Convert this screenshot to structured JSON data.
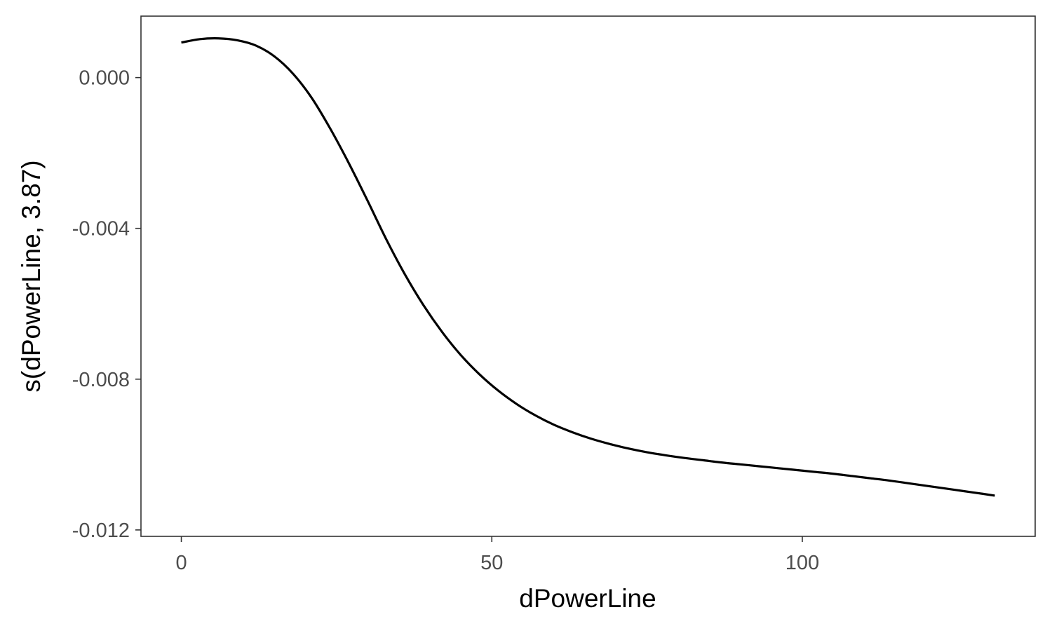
{
  "chart_data": {
    "type": "line",
    "title": "",
    "xlabel": "dPowerLine",
    "ylabel": "s(dPowerLine, 3.87)",
    "xlim": [
      -6.5,
      137.5
    ],
    "ylim": [
      -0.01217,
      0.00163
    ],
    "x_ticks": [
      0,
      50,
      100
    ],
    "x_tick_labels": [
      "0",
      "50",
      "100"
    ],
    "y_ticks": [
      0.0,
      -0.004,
      -0.008,
      -0.012
    ],
    "y_tick_labels": [
      "0.000",
      "-0.004",
      "-0.008",
      "-0.012"
    ],
    "grid": false,
    "legend": "none",
    "line_color": "#000000",
    "series": [
      {
        "x": [
          0,
          3,
          6,
          9,
          12,
          15,
          18,
          21,
          24,
          27,
          30,
          33,
          36,
          39,
          42,
          45,
          48,
          51,
          54,
          57,
          60,
          63,
          66,
          69,
          72,
          75,
          78,
          81,
          84,
          87,
          90,
          93,
          96,
          99,
          102,
          105,
          108,
          111,
          114,
          117,
          120,
          123,
          126,
          129,
          131
        ],
        "y": [
          0.00093,
          0.00102,
          0.00104,
          0.00099,
          0.00085,
          0.00056,
          0.0001,
          -0.00054,
          -0.00136,
          -0.00228,
          -0.00327,
          -0.00429,
          -0.00522,
          -0.00604,
          -0.00675,
          -0.00736,
          -0.00787,
          -0.0083,
          -0.00866,
          -0.00896,
          -0.00921,
          -0.00941,
          -0.00958,
          -0.00972,
          -0.00984,
          -0.00994,
          -0.01002,
          -0.01009,
          -0.01015,
          -0.01021,
          -0.01026,
          -0.01031,
          -0.01036,
          -0.01041,
          -0.01046,
          -0.01051,
          -0.01057,
          -0.01063,
          -0.01069,
          -0.01076,
          -0.01083,
          -0.0109,
          -0.01097,
          -0.01104,
          -0.01109
        ]
      }
    ]
  }
}
